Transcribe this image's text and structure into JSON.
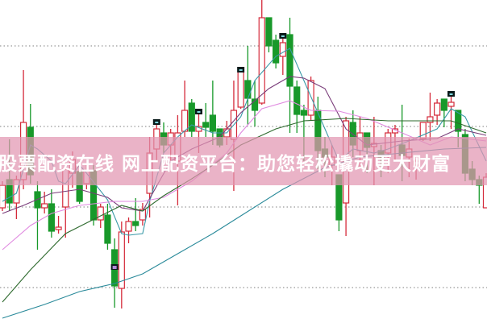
{
  "banner": {
    "text": "股票配资在线 网上配资平台：助您轻松撬动更大财富"
  },
  "chart_data": {
    "type": "candlestick",
    "title": "",
    "xlabel": "",
    "ylabel": "",
    "ylim": [
      0,
      400
    ],
    "grid": true,
    "gridlines": [
      43,
      143,
      243,
      343
    ],
    "colors": {
      "up": "#d42a3a",
      "down": "#18992a",
      "ma_fast": "#3a9aa8",
      "ma_mid": "#7a3d7a",
      "ma_slow": "#e08ae0",
      "ma_long": "#2e6a2e",
      "ma_longest": "#2a8a9a",
      "grid": "#999999",
      "banner": "#e296b2"
    },
    "candles": [
      [
        142,
        175,
        138,
        170
      ],
      [
        177,
        227,
        138,
        148
      ],
      [
        148,
        182,
        128,
        177
      ],
      [
        177,
        313,
        165,
        248
      ],
      [
        242,
        271,
        172,
        183
      ],
      [
        162,
        175,
        90,
        142
      ],
      [
        142,
        162,
        135,
        147
      ],
      [
        147,
        165,
        105,
        113
      ],
      [
        115,
        132,
        110,
        118
      ],
      [
        143,
        200,
        105,
        190
      ],
      [
        185,
        212,
        167,
        202
      ],
      [
        187,
        200,
        147,
        150
      ],
      [
        172,
        195,
        165,
        188
      ],
      [
        188,
        195,
        120,
        127
      ],
      [
        127,
        147,
        117,
        143
      ],
      [
        133,
        147,
        90,
        98
      ],
      [
        90,
        104,
        18,
        45
      ],
      [
        42,
        125,
        17,
        112
      ],
      [
        113,
        130,
        98,
        125
      ],
      [
        125,
        154,
        113,
        120
      ],
      [
        127,
        148,
        120,
        140
      ],
      [
        160,
        230,
        130,
        210
      ],
      [
        215,
        250,
        200,
        240
      ],
      [
        235,
        248,
        210,
        220
      ],
      [
        220,
        240,
        200,
        235
      ],
      [
        200,
        257,
        145,
        235
      ],
      [
        237,
        300,
        230,
        263
      ],
      [
        272,
        277,
        230,
        237
      ],
      [
        237,
        263,
        210,
        243
      ],
      [
        248,
        272,
        230,
        242
      ],
      [
        257,
        300,
        220,
        237
      ],
      [
        240,
        240,
        217,
        220
      ],
      [
        230,
        250,
        220,
        240
      ],
      [
        227,
        300,
        163,
        263
      ],
      [
        267,
        315,
        265,
        313
      ],
      [
        300,
        343,
        245,
        278
      ],
      [
        277,
        300,
        243,
        263
      ],
      [
        272,
        400,
        270,
        378
      ],
      [
        378,
        378,
        335,
        343
      ],
      [
        350,
        357,
        315,
        322
      ],
      [
        330,
        357,
        307,
        347
      ],
      [
        357,
        378,
        235,
        293
      ],
      [
        292,
        300,
        235,
        258
      ],
      [
        263,
        270,
        200,
        257
      ],
      [
        257,
        305,
        250,
        300
      ],
      [
        263,
        280,
        190,
        213
      ],
      [
        215,
        230,
        180,
        205
      ],
      [
        195,
        220,
        170,
        205
      ],
      [
        183,
        183,
        113,
        127
      ],
      [
        148,
        255,
        107,
        250
      ],
      [
        248,
        263,
        205,
        220
      ],
      [
        213,
        255,
        190,
        235
      ],
      [
        235,
        235,
        185,
        217
      ],
      [
        218,
        255,
        170,
        222
      ],
      [
        213,
        220,
        180,
        205
      ],
      [
        210,
        240,
        185,
        235
      ],
      [
        235,
        245,
        200,
        240
      ],
      [
        220,
        270,
        175,
        207
      ],
      [
        205,
        228,
        180,
        215
      ],
      [
        195,
        203,
        177,
        200
      ],
      [
        228,
        248,
        225,
        248
      ],
      [
        248,
        285,
        225,
        255
      ],
      [
        257,
        277,
        245,
        272
      ],
      [
        277,
        277,
        242,
        263
      ],
      [
        268,
        285,
        240,
        273
      ],
      [
        263,
        263,
        217,
        237
      ],
      [
        233,
        240,
        175,
        185
      ],
      [
        190,
        200,
        170,
        177
      ],
      [
        177,
        182,
        147,
        170
      ],
      [
        142,
        185,
        142,
        180
      ]
    ],
    "markers_high": [
      22,
      28,
      34,
      40,
      64
    ],
    "markers_low": [
      16
    ],
    "moving_averages": [
      {
        "key": "ma_fast",
        "points": [
          [
            0,
            150
          ],
          [
            2,
            160
          ],
          [
            4,
            220
          ],
          [
            5,
            215
          ],
          [
            7,
            200
          ],
          [
            8,
            175
          ],
          [
            9,
            172
          ],
          [
            11,
            195
          ],
          [
            12,
            185
          ],
          [
            15,
            152
          ],
          [
            17,
            110
          ],
          [
            18,
            108
          ],
          [
            20,
            110
          ],
          [
            21,
            150
          ],
          [
            23,
            210
          ],
          [
            25,
            230
          ],
          [
            27,
            245
          ],
          [
            30,
            235
          ],
          [
            32,
            235
          ],
          [
            34,
            255
          ],
          [
            36,
            300
          ],
          [
            39,
            330
          ],
          [
            41,
            340
          ],
          [
            43,
            300
          ],
          [
            45,
            260
          ],
          [
            48,
            200
          ],
          [
            50,
            215
          ],
          [
            53,
            210
          ],
          [
            55,
            215
          ],
          [
            58,
            225
          ],
          [
            62,
            240
          ],
          [
            64,
            265
          ],
          [
            66,
            255
          ],
          [
            69,
            200
          ]
        ]
      },
      {
        "key": "ma_mid",
        "points": [
          [
            0,
            135
          ],
          [
            3,
            145
          ],
          [
            7,
            160
          ],
          [
            11,
            165
          ],
          [
            15,
            155
          ],
          [
            17,
            142
          ],
          [
            20,
            138
          ],
          [
            24,
            200
          ],
          [
            27,
            215
          ],
          [
            31,
            230
          ],
          [
            34,
            260
          ],
          [
            38,
            290
          ],
          [
            41,
            305
          ],
          [
            43,
            303
          ],
          [
            46,
            290
          ],
          [
            49,
            240
          ],
          [
            52,
            220
          ],
          [
            57,
            225
          ],
          [
            62,
            228
          ],
          [
            65,
            240
          ],
          [
            69,
            232
          ]
        ]
      },
      {
        "key": "ma_slow",
        "points": [
          [
            0,
            90
          ],
          [
            4,
            120
          ],
          [
            7,
            135
          ],
          [
            11,
            145
          ],
          [
            16,
            150
          ],
          [
            20,
            150
          ],
          [
            23,
            155
          ],
          [
            27,
            175
          ],
          [
            32,
            210
          ],
          [
            34,
            235
          ],
          [
            37,
            265
          ],
          [
            41,
            275
          ],
          [
            44,
            263
          ],
          [
            48,
            262
          ],
          [
            52,
            253
          ],
          [
            57,
            235
          ],
          [
            61,
            220
          ],
          [
            64,
            230
          ],
          [
            69,
            225
          ]
        ]
      },
      {
        "key": "ma_long",
        "points": [
          [
            0,
            25
          ],
          [
            4,
            65
          ],
          [
            9,
            110
          ],
          [
            14,
            132
          ],
          [
            17,
            145
          ],
          [
            20,
            138
          ],
          [
            23,
            157
          ],
          [
            27,
            178
          ],
          [
            30,
            195
          ],
          [
            34,
            220
          ],
          [
            39,
            240
          ],
          [
            43,
            250
          ],
          [
            49,
            253
          ],
          [
            55,
            250
          ],
          [
            60,
            250
          ],
          [
            64,
            250
          ],
          [
            69,
            235
          ]
        ]
      },
      {
        "key": "ma_longest",
        "points": [
          [
            0,
            5
          ],
          [
            6,
            22
          ],
          [
            11,
            38
          ],
          [
            16,
            48
          ],
          [
            20,
            60
          ],
          [
            25,
            85
          ],
          [
            30,
            110
          ],
          [
            34,
            132
          ],
          [
            40,
            165
          ],
          [
            46,
            192
          ],
          [
            51,
            205
          ],
          [
            57,
            210
          ],
          [
            63,
            215
          ],
          [
            69,
            217
          ]
        ]
      }
    ]
  }
}
